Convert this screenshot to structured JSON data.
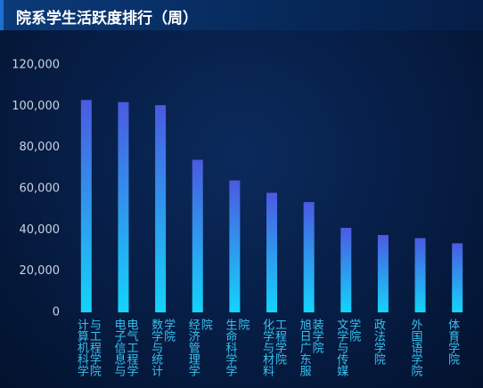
{
  "chart_data": {
    "type": "bar",
    "title": "院系学生活跃度排行（周）",
    "categories": [
      "计算机科学与工程学院",
      "电子信息与电气工程学",
      "数学与统计学院",
      "经济管理学院",
      "生命科学学院",
      "化学与材料工程学院",
      "旭日广东服装学院",
      "文学与传媒学院",
      "政法学院",
      "外国语学院",
      "体育学院"
    ],
    "values": [
      103000,
      102000,
      100500,
      74000,
      64000,
      58000,
      53500,
      41000,
      37500,
      36000,
      33500
    ],
    "color": [
      "#4b5ae0",
      "#14d4fa"
    ],
    "ylim": [
      0,
      120000
    ],
    "yticks": [
      0,
      {
        "value": 20000,
        "label": "20,000"
      },
      {
        "value": 40000,
        "label": "40,000"
      },
      {
        "value": 60000,
        "label": "60,000"
      },
      {
        "value": 80000,
        "label": "80,000"
      },
      {
        "value": 100000,
        "label": "100,000"
      },
      {
        "value": 120000,
        "label": "120,000"
      }
    ],
    "grid": false
  }
}
